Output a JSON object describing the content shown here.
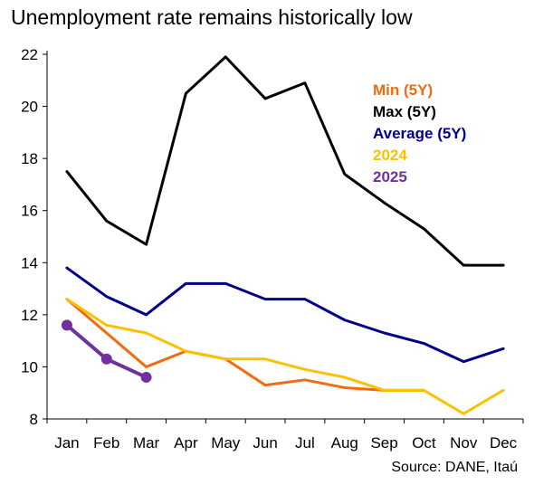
{
  "chart_data": {
    "type": "line",
    "title": "Unemployment rate remains historically low",
    "source": "Source: DANE, Itaú",
    "categories": [
      "Jan",
      "Feb",
      "Mar",
      "Apr",
      "May",
      "Jun",
      "Jul",
      "Aug",
      "Sep",
      "Oct",
      "Nov",
      "Dec"
    ],
    "ylim": [
      8,
      22
    ],
    "yticks": [
      8,
      10,
      12,
      14,
      16,
      18,
      20,
      22
    ],
    "grid": false,
    "legend_position": "top-right",
    "series": [
      {
        "name": "Min (5Y)",
        "color": "#F26B0F",
        "values": [
          12.6,
          11.3,
          10.0,
          10.6,
          10.3,
          9.3,
          9.5,
          9.2,
          9.1,
          9.1,
          null,
          null
        ],
        "markers": false
      },
      {
        "name": "Max (5Y)",
        "color": "#000000",
        "values": [
          17.5,
          15.6,
          14.7,
          20.5,
          21.9,
          20.3,
          20.9,
          17.4,
          16.3,
          15.3,
          13.9,
          13.9
        ],
        "markers": false
      },
      {
        "name": "Average (5Y)",
        "color": "#00008B",
        "values": [
          13.8,
          12.7,
          12.0,
          13.2,
          13.2,
          12.6,
          12.6,
          11.8,
          11.3,
          10.9,
          10.2,
          10.7
        ],
        "markers": false
      },
      {
        "name": "2024",
        "color": "#FFC000",
        "values": [
          12.6,
          11.6,
          11.3,
          10.6,
          10.3,
          10.3,
          9.9,
          9.6,
          9.1,
          9.1,
          8.2,
          9.1
        ],
        "markers": false
      },
      {
        "name": "2025",
        "color": "#7030A0",
        "values": [
          11.6,
          10.3,
          9.6,
          null,
          null,
          null,
          null,
          null,
          null,
          null,
          null,
          null
        ],
        "markers": true
      }
    ]
  }
}
